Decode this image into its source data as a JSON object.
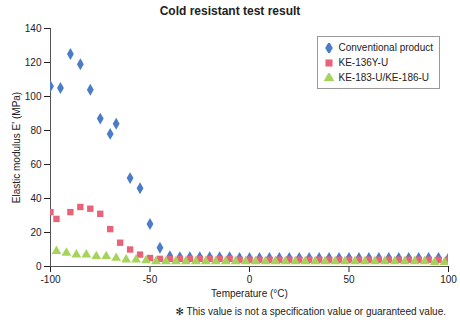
{
  "chart_data": {
    "type": "scatter",
    "title": "Cold resistant test result",
    "x_label": "Temperature (°C)",
    "y_label": "Elastic modulus E' (MPa)",
    "annotations": [
      "✻ This value is not a specification value or guaranteed value."
    ],
    "xlim": [
      -100,
      100
    ],
    "xticks": [
      -100,
      -50,
      0,
      50,
      100
    ],
    "ylim": [
      0,
      140
    ],
    "yticks": [
      0,
      20,
      40,
      60,
      80,
      100,
      120,
      140
    ],
    "grid": false,
    "legend": "top-right",
    "series": [
      {
        "name": "Conventional product",
        "color": "#4a7cc7",
        "marker": "diamond",
        "x": [
          -100,
          -95,
          -90,
          -85,
          -80,
          -75,
          -70,
          -67,
          -60,
          -55,
          -50,
          -45,
          -40,
          -35,
          -30,
          -25,
          -20,
          -15,
          -10,
          -5,
          0,
          5,
          10,
          15,
          20,
          25,
          30,
          35,
          40,
          45,
          50,
          55,
          60,
          65,
          70,
          75,
          80,
          85,
          90,
          95,
          100
        ],
        "values": [
          106,
          105,
          125,
          119,
          104,
          87,
          78,
          84,
          52,
          46,
          25,
          11,
          6,
          5.5,
          5.5,
          5.5,
          5.5,
          5.5,
          5.5,
          5,
          5,
          5,
          5,
          5,
          5,
          5,
          5,
          5,
          5,
          5,
          5,
          5,
          5,
          5,
          5,
          5,
          5,
          5,
          5,
          5,
          5
        ]
      },
      {
        "name": "KE-136Y-U",
        "color": "#e8637a",
        "marker": "square",
        "x": [
          -100,
          -97,
          -90,
          -85,
          -80,
          -75,
          -70,
          -65,
          -60,
          -55,
          -50,
          -45,
          -40,
          -35,
          -30,
          -25,
          -20,
          -15,
          -10,
          -5,
          0,
          5,
          10,
          15,
          20,
          25,
          30,
          35,
          40,
          45,
          50,
          55,
          60,
          65,
          70,
          75,
          80,
          85,
          90,
          95,
          100
        ],
        "values": [
          32,
          28,
          32,
          35,
          34,
          31,
          22,
          14,
          10,
          7,
          5,
          4.5,
          4.5,
          4.5,
          4.5,
          4.5,
          4.5,
          4.5,
          4.5,
          4,
          4,
          4,
          4,
          4,
          4,
          4,
          4,
          4,
          4,
          4,
          4,
          4,
          4,
          4,
          4,
          4,
          4,
          4,
          4,
          4,
          4
        ]
      },
      {
        "name": "KE-183-U/KE-186-U",
        "color": "#a6d45a",
        "marker": "triangle",
        "x": [
          -97,
          -92,
          -87,
          -82,
          -77,
          -72,
          -67,
          -62,
          -57,
          -52,
          -47,
          -42,
          -37,
          -32,
          -27,
          -22,
          -17,
          -12,
          -7,
          -2,
          3,
          8,
          13,
          18,
          23,
          28,
          33,
          38,
          43,
          48,
          53,
          58,
          63,
          68,
          73,
          78,
          83,
          88,
          93,
          98
        ],
        "values": [
          9,
          8,
          7,
          7,
          6,
          6,
          5,
          4,
          4,
          3.5,
          3,
          3,
          3,
          3,
          3,
          3,
          3,
          3,
          3,
          3,
          3,
          3,
          3,
          3,
          3,
          3,
          3,
          3,
          3,
          3,
          3,
          3,
          3,
          3,
          3,
          3,
          3,
          3,
          2.5,
          2.5
        ]
      }
    ]
  }
}
